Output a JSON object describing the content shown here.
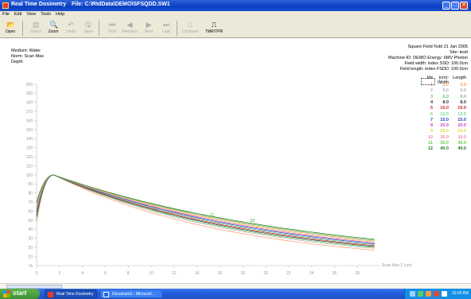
{
  "window": {
    "title": "Real Time Dosimetry",
    "file": "File: C:\\RtdData\\DEMO\\SFSQDD.SW1",
    "buttons": {
      "minimize": "_",
      "maximize": "□",
      "close": "✕"
    }
  },
  "menu": [
    "File",
    "Edit",
    "View",
    "Tools",
    "Help"
  ],
  "toolbar": [
    {
      "id": "open",
      "label": "Open",
      "icon": "open-icon",
      "glyph": "📂",
      "enabled": true
    },
    {
      "id": "select",
      "label": "Select",
      "icon": "select-icon",
      "glyph": "▤",
      "enabled": false
    },
    {
      "id": "zoom",
      "label": "Zoom",
      "icon": "zoom-icon",
      "glyph": "🔍",
      "enabled": true
    },
    {
      "id": "undo",
      "label": "Undo",
      "icon": "undo-icon",
      "glyph": "↶",
      "enabled": false
    },
    {
      "id": "save",
      "label": "Save",
      "icon": "save-icon",
      "glyph": "🖫",
      "enabled": false
    },
    {
      "id": "first",
      "label": "First",
      "icon": "first-icon",
      "glyph": "⏮",
      "enabled": false
    },
    {
      "id": "previous",
      "label": "Previous",
      "icon": "previous-icon",
      "glyph": "◀",
      "enabled": false
    },
    {
      "id": "next",
      "label": "Next",
      "icon": "next-icon",
      "glyph": "▶",
      "enabled": false
    },
    {
      "id": "last",
      "label": "Last",
      "icon": "last-icon",
      "glyph": "⏭",
      "enabled": false
    },
    {
      "id": "compare",
      "label": "Compare",
      "icon": "compare-icon",
      "glyph": "⎍",
      "enabled": false
    },
    {
      "id": "tmrtpr",
      "label": "TMR/TPR",
      "icon": "tmr-tpr-icon",
      "glyph": "⎍",
      "enabled": true
    }
  ],
  "info": {
    "left": [
      "Medium: Water",
      "Norm: Scan Max",
      "Depth"
    ],
    "right": [
      "Square Field %dd  21 Jan 2005",
      "Site: testt",
      "Machine-ID: DEMO    Energy: 6MV Photon",
      "Field width: index      SSD: 100.0cm",
      "Field length: index     FSDD: 100.0cm"
    ]
  },
  "legend": {
    "header": [
      "Idx",
      "(cm): Width",
      "Length"
    ],
    "rows": [
      {
        "idx": "1",
        "width": "3.0",
        "length": "3.0",
        "color": "#ff9966"
      },
      {
        "idx": "2",
        "width": "5.0",
        "length": "5.0",
        "color": "#b0b0b0"
      },
      {
        "idx": "3",
        "width": "6.0",
        "length": "6.0",
        "color": "#66cc66"
      },
      {
        "idx": "4",
        "width": "8.0",
        "length": "8.0",
        "color": "#333333"
      },
      {
        "idx": "5",
        "width": "10.0",
        "length": "10.0",
        "color": "#cc2222"
      },
      {
        "idx": "6",
        "width": "12.0",
        "length": "12.0",
        "color": "#66dd88"
      },
      {
        "idx": "7",
        "width": "15.0",
        "length": "15.0",
        "color": "#2244cc"
      },
      {
        "idx": "8",
        "width": "20.0",
        "length": "20.0",
        "color": "#cc44cc"
      },
      {
        "idx": "9",
        "width": "25.0",
        "length": "25.0",
        "color": "#dddd44"
      },
      {
        "idx": "10",
        "width": "30.0",
        "length": "30.0",
        "color": "#ff88aa"
      },
      {
        "idx": "11",
        "width": "35.0",
        "length": "35.0",
        "color": "#66cc44"
      },
      {
        "idx": "12",
        "width": "40.0",
        "length": "40.0",
        "color": "#227722"
      }
    ]
  },
  "chart_data": {
    "type": "line",
    "xlabel": "Scan Axis Z (cm)",
    "ylabel": "%",
    "xlim": [
      0,
      30
    ],
    "ylim": [
      0,
      200
    ],
    "xticks": [
      0,
      2,
      4,
      6,
      8,
      10,
      12,
      14,
      16,
      18,
      20,
      22,
      24,
      26,
      28
    ],
    "yticks": [
      10,
      20,
      30,
      40,
      50,
      60,
      70,
      80,
      90,
      100,
      110,
      120,
      130,
      140,
      150,
      160,
      170,
      180,
      190,
      200
    ],
    "grid": false,
    "curve_labels": [
      "11",
      "12"
    ],
    "series": [
      {
        "name": "1",
        "surface": 48,
        "end": 17,
        "color": "#ff9966"
      },
      {
        "name": "2",
        "surface": 50,
        "end": 19,
        "color": "#b0b0b0"
      },
      {
        "name": "3",
        "surface": 52,
        "end": 20,
        "color": "#66cc66"
      },
      {
        "name": "4",
        "surface": 54,
        "end": 21,
        "color": "#333333"
      },
      {
        "name": "5",
        "surface": 56,
        "end": 22,
        "color": "#cc2222"
      },
      {
        "name": "6",
        "surface": 58,
        "end": 23,
        "color": "#66dd88"
      },
      {
        "name": "7",
        "surface": 60,
        "end": 24,
        "color": "#2244cc"
      },
      {
        "name": "8",
        "surface": 62,
        "end": 25,
        "color": "#cc44cc"
      },
      {
        "name": "9",
        "surface": 64,
        "end": 26,
        "color": "#dddd44"
      },
      {
        "name": "10",
        "surface": 66,
        "end": 27,
        "color": "#ff88aa"
      },
      {
        "name": "11",
        "surface": 68,
        "end": 28,
        "color": "#66cc44"
      },
      {
        "name": "12",
        "surface": 70,
        "end": 29,
        "color": "#227722"
      }
    ],
    "peak": {
      "x": 1.5,
      "y": 100
    },
    "x_end": 29.5
  },
  "taskbar": {
    "start": "start",
    "tasks": [
      {
        "label": "Real Time Dosimetry",
        "active": true
      },
      {
        "label": "Document1 - Microsof...",
        "active": false
      }
    ],
    "clock": "10:00 AM"
  }
}
